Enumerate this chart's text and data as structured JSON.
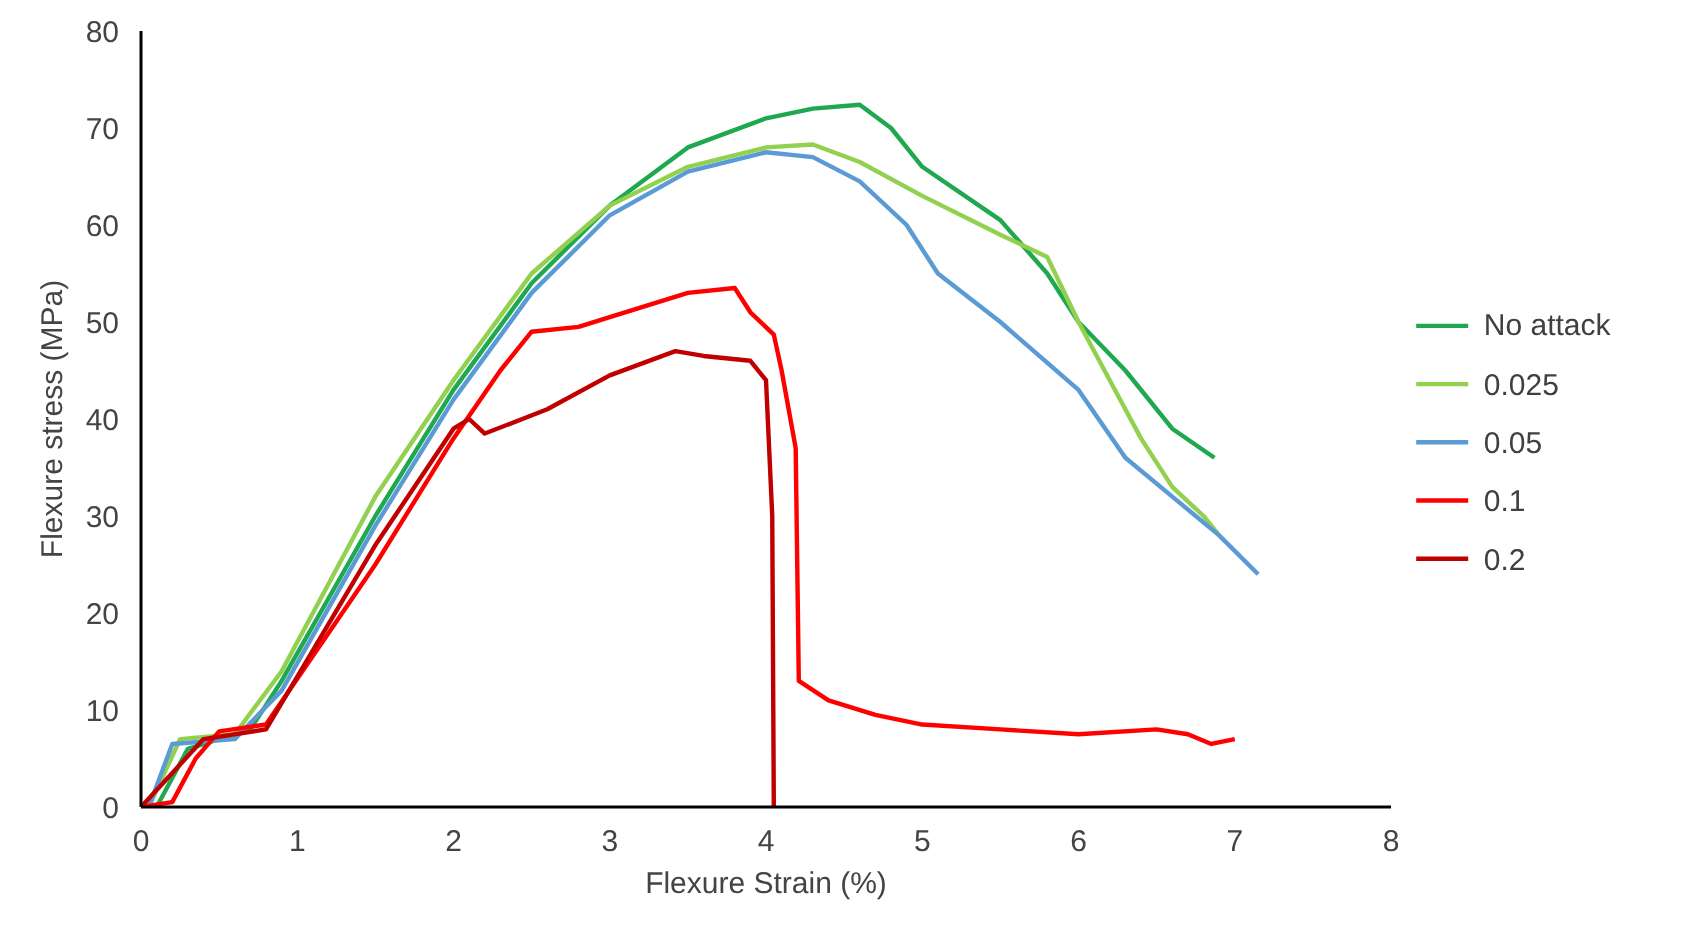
{
  "chart_data": {
    "type": "line",
    "xlabel": "Flexure Strain (%)",
    "ylabel": "Flexure stress (MPa)",
    "xlim": [
      0,
      8
    ],
    "xticks": [
      0,
      1,
      2,
      3,
      4,
      5,
      6,
      7,
      8
    ],
    "ylim": [
      0,
      80
    ],
    "yticks": [
      0,
      10,
      20,
      30,
      40,
      50,
      60,
      70,
      80
    ],
    "grid": false,
    "legend": "right",
    "marker": "none",
    "line_style": "solid",
    "series": [
      {
        "name": "No attack",
        "color": "#1fa84f",
        "x": [
          0.1,
          0.3,
          0.5,
          0.7,
          0.9,
          1.5,
          2,
          2.5,
          3,
          3.5,
          4,
          4.3,
          4.6,
          4.8,
          5,
          5.5,
          5.8,
          6,
          6.3,
          6.6,
          6.87
        ],
        "values": [
          0,
          6,
          7,
          8,
          13,
          30,
          43,
          54,
          62,
          68,
          71,
          72,
          72.4,
          70,
          66,
          60.5,
          55,
          50,
          45,
          39,
          36
        ]
      },
      {
        "name": "0.025",
        "color": "#92d050",
        "x": [
          0.05,
          0.25,
          0.6,
          0.9,
          1.5,
          2,
          2.5,
          3,
          3.5,
          4,
          4.3,
          4.6,
          5,
          5.5,
          5.8,
          6,
          6.2,
          6.4,
          6.6,
          6.8,
          6.9
        ],
        "values": [
          0,
          7,
          7.5,
          14,
          32,
          44,
          55,
          62,
          66,
          68,
          68.3,
          66.5,
          63,
          59,
          56.7,
          50,
          44,
          38,
          33,
          30,
          28
        ]
      },
      {
        "name": "0.05",
        "color": "#5b9bd5",
        "x": [
          0.05,
          0.2,
          0.6,
          0.9,
          1.5,
          2,
          2.5,
          3,
          3.5,
          4,
          4.3,
          4.6,
          4.9,
          5.1,
          5.5,
          6,
          6.3,
          6.6,
          6.9,
          7.15
        ],
        "values": [
          0,
          6.5,
          7,
          12,
          29,
          42,
          53,
          61,
          65.5,
          67.5,
          67,
          64.5,
          60,
          55,
          50,
          43,
          36,
          32,
          28,
          24
        ]
      },
      {
        "name": "0.1",
        "color": "#ff0000",
        "x": [
          0,
          0.2,
          0.35,
          0.5,
          0.8,
          1.5,
          2,
          2.3,
          2.5,
          2.8,
          3,
          3.5,
          3.8,
          3.9,
          4.05,
          4.1,
          4.19,
          4.21,
          4.4,
          4.7,
          5,
          5.5,
          6,
          6.5,
          6.7,
          6.85,
          7
        ],
        "values": [
          0,
          0.5,
          5,
          7.8,
          8.5,
          25,
          38,
          45,
          49,
          49.5,
          50.5,
          53,
          53.5,
          51,
          48.7,
          45,
          37,
          13,
          11,
          9.5,
          8.5,
          8,
          7.5,
          8,
          7.5,
          6.5,
          7
        ]
      },
      {
        "name": "0.2",
        "color": "#c00000",
        "x": [
          0,
          0.4,
          0.8,
          1.5,
          2,
          2.1,
          2.2,
          2.6,
          3,
          3.42,
          3.6,
          3.9,
          4.0,
          4.04,
          4.05
        ],
        "values": [
          0,
          7,
          8,
          27,
          39,
          40,
          38.5,
          41,
          44.5,
          47,
          46.5,
          46,
          44,
          30,
          0
        ]
      }
    ]
  }
}
